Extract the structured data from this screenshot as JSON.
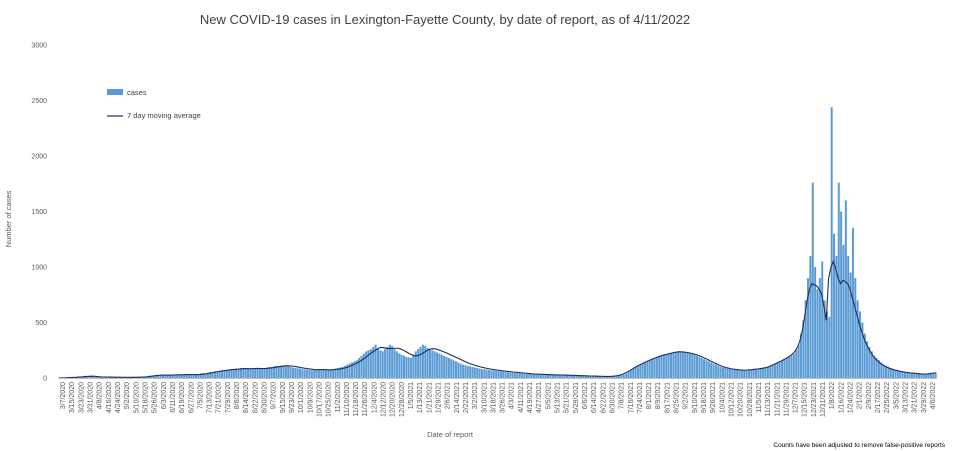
{
  "chart_data": {
    "type": "bar",
    "title": "New COVID-19 cases in Lexington-Fayette County, by date of report, as of 4/11/2022",
    "xlabel": "Date of report",
    "ylabel": "Number of cases",
    "ylim": [
      0,
      3000
    ],
    "yticks": [
      0,
      500,
      1000,
      1500,
      2000,
      2500,
      3000
    ],
    "grid": false,
    "legend_position": "top-left",
    "note": "Counts have been adjusted to remove false-positive reports",
    "x_tick_labels": [
      "3/7/2020",
      "3/15/2020",
      "3/23/2020",
      "3/31/2020",
      "4/8/2020",
      "4/16/2020",
      "4/24/2020",
      "5/2/2020",
      "5/10/2020",
      "5/18/2020",
      "5/26/2020",
      "6/3/2020",
      "6/11/2020",
      "6/19/2020",
      "6/27/2020",
      "7/5/2020",
      "7/13/2020",
      "7/21/2020",
      "7/29/2020",
      "8/6/2020",
      "8/14/2020",
      "8/22/2020",
      "8/30/2020",
      "9/7/2020",
      "9/15/2020",
      "9/23/2020",
      "10/1/2020",
      "10/9/2020",
      "10/17/2020",
      "10/25/2020",
      "11/2/2020",
      "11/10/2020",
      "11/18/2020",
      "11/26/2020",
      "12/4/2020",
      "12/12/2020",
      "12/20/2020",
      "12/28/2020",
      "1/5/2021",
      "1/13/2021",
      "1/21/2021",
      "1/29/2021",
      "2/6/2021",
      "2/14/2021",
      "2/22/2021",
      "3/2/2021",
      "3/10/2021",
      "3/18/2021",
      "3/26/2021",
      "4/3/2021",
      "4/11/2021",
      "4/19/2021",
      "4/27/2021",
      "5/5/2021",
      "5/13/2021",
      "5/21/2021",
      "5/29/2021",
      "6/6/2021",
      "6/14/2021",
      "6/22/2021",
      "6/30/2021",
      "7/8/2021",
      "7/16/2021",
      "7/24/2021",
      "8/1/2021",
      "8/9/2021",
      "8/17/2021",
      "8/25/2021",
      "9/2/2021",
      "9/10/2021",
      "9/18/2021",
      "9/26/2021",
      "10/4/2021",
      "10/12/2021",
      "10/20/2021",
      "10/28/2021",
      "11/5/2021",
      "11/13/2021",
      "11/21/2021",
      "11/29/2021",
      "12/7/2021",
      "12/15/2021",
      "12/23/2021",
      "12/31/2021",
      "1/8/2022",
      "1/16/2022",
      "1/24/2022",
      "2/1/2022",
      "2/9/2022",
      "2/17/2022",
      "2/25/2022",
      "3/5/2022",
      "3/13/2022",
      "3/21/2022",
      "3/29/2022",
      "4/6/2022"
    ],
    "series": [
      {
        "name": "cases",
        "type": "bar",
        "color": "#5B9BD5",
        "values": [
          2,
          1,
          0,
          3,
          5,
          4,
          8,
          6,
          12,
          10,
          15,
          20,
          18,
          14,
          22,
          12,
          10,
          8,
          6,
          10,
          12,
          8,
          10,
          5,
          6,
          8,
          6,
          5,
          4,
          7,
          8,
          5,
          6,
          9,
          8,
          10,
          12,
          15,
          20,
          22,
          25,
          28,
          26,
          30,
          24,
          22,
          26,
          28,
          30,
          32,
          28,
          26,
          30,
          35,
          32,
          30,
          28,
          26,
          30,
          35,
          40,
          45,
          42,
          48,
          55,
          50,
          60,
          58,
          65,
          70,
          68,
          75,
          72,
          80,
          78,
          85,
          82,
          90,
          88,
          80,
          85,
          82,
          88,
          90,
          86,
          80,
          85,
          90,
          95,
          100,
          98,
          105,
          110,
          108,
          112,
          115,
          110,
          105,
          100,
          95,
          90,
          88,
          85,
          80,
          78,
          75,
          72,
          70,
          75,
          80,
          78,
          76,
          72,
          70,
          75,
          78,
          80,
          85,
          90,
          95,
          100,
          110,
          120,
          130,
          140,
          150,
          160,
          180,
          200,
          220,
          240,
          250,
          260,
          280,
          300,
          270,
          250,
          240,
          260,
          280,
          300,
          290,
          260,
          240,
          220,
          210,
          200,
          190,
          185,
          180,
          210,
          240,
          260,
          280,
          300,
          290,
          270,
          260,
          250,
          240,
          230,
          220,
          210,
          200,
          190,
          180,
          170,
          160,
          150,
          140,
          130,
          120,
          115,
          110,
          105,
          100,
          95,
          90,
          85,
          80,
          78,
          75,
          72,
          70,
          68,
          65,
          62,
          60,
          58,
          55,
          52,
          50,
          48,
          45,
          44,
          42,
          40,
          38,
          36,
          35,
          34,
          33,
          32,
          31,
          30,
          30,
          29,
          28,
          28,
          27,
          27,
          26,
          25,
          25,
          24,
          23,
          22,
          22,
          21,
          20,
          20,
          19,
          18,
          18,
          17,
          16,
          15,
          14,
          14,
          13,
          12,
          12,
          11,
          10,
          12,
          14,
          16,
          20,
          25,
          30,
          40,
          55,
          70,
          85,
          100,
          110,
          120,
          130,
          140,
          150,
          160,
          170,
          180,
          190,
          200,
          205,
          210,
          215,
          220,
          225,
          230,
          235,
          240,
          238,
          235,
          230,
          225,
          220,
          215,
          210,
          200,
          190,
          180,
          170,
          160,
          150,
          140,
          130,
          120,
          110,
          100,
          95,
          90,
          85,
          80,
          78,
          76,
          74,
          72,
          70,
          70,
          72,
          75,
          78,
          80,
          82,
          85,
          88,
          90,
          95,
          100,
          110,
          120,
          130,
          140,
          150,
          160,
          170,
          180,
          190,
          200,
          220,
          250,
          300,
          400,
          520,
          700,
          900,
          1100,
          1760,
          1000,
          800,
          900,
          1050,
          700,
          600,
          550,
          2440,
          1300,
          1100,
          1760,
          1500,
          1200,
          1600,
          1100,
          950,
          1350,
          900,
          700,
          600,
          500,
          400,
          330,
          280,
          240,
          200,
          180,
          160,
          140,
          120,
          110,
          100,
          90,
          80,
          75,
          70,
          65,
          60,
          55,
          50,
          48,
          46,
          44,
          42,
          40,
          38,
          36,
          35,
          34,
          40,
          45,
          50
        ]
      },
      {
        "name": "7 day moving average",
        "type": "line",
        "color": "#1F2D5C",
        "values": [
          1,
          1,
          1,
          2,
          3,
          4,
          5,
          6,
          8,
          9,
          11,
          13,
          14,
          15,
          16,
          15,
          13,
          11,
          9,
          9,
          9,
          8,
          8,
          7,
          7,
          7,
          6,
          6,
          6,
          6,
          6,
          6,
          6,
          7,
          7,
          8,
          9,
          11,
          13,
          16,
          19,
          22,
          24,
          26,
          26,
          25,
          25,
          26,
          27,
          28,
          29,
          29,
          29,
          30,
          31,
          31,
          30,
          30,
          30,
          31,
          33,
          36,
          39,
          43,
          47,
          51,
          55,
          58,
          62,
          65,
          68,
          71,
          74,
          76,
          78,
          80,
          82,
          84,
          85,
          84,
          84,
          84,
          85,
          86,
          86,
          85,
          85,
          86,
          88,
          91,
          94,
          97,
          101,
          104,
          107,
          110,
          110,
          109,
          107,
          104,
          100,
          96,
          92,
          88,
          85,
          82,
          79,
          76,
          75,
          75,
          76,
          76,
          75,
          74,
          74,
          75,
          77,
          79,
          82,
          86,
          91,
          98,
          106,
          115,
          125,
          135,
          146,
          160,
          175,
          192,
          210,
          226,
          240,
          254,
          268,
          275,
          274,
          270,
          266,
          265,
          266,
          268,
          268,
          264,
          256,
          244,
          232,
          220,
          210,
          200,
          200,
          205,
          215,
          228,
          242,
          254,
          262,
          264,
          262,
          256,
          248,
          240,
          231,
          222,
          212,
          202,
          192,
          182,
          172,
          162,
          152,
          142,
          133,
          125,
          118,
          111,
          105,
          99,
          94,
          89,
          85,
          81,
          77,
          74,
          71,
          68,
          65,
          63,
          60,
          58,
          55,
          53,
          51,
          49,
          47,
          45,
          43,
          41,
          39,
          37,
          36,
          35,
          34,
          33,
          32,
          31,
          30,
          29,
          29,
          28,
          28,
          27,
          26,
          26,
          25,
          24,
          23,
          23,
          22,
          21,
          21,
          20,
          19,
          18,
          18,
          17,
          16,
          15,
          15,
          14,
          14,
          14,
          15,
          17,
          20,
          24,
          30,
          38,
          48,
          60,
          73,
          86,
          99,
          111,
          122,
          132,
          142,
          152,
          161,
          170,
          179,
          187,
          195,
          202,
          208,
          214,
          219,
          224,
          229,
          233,
          236,
          236,
          235,
          232,
          228,
          224,
          219,
          213,
          206,
          198,
          189,
          179,
          169,
          158,
          147,
          137,
          127,
          117,
          108,
          100,
          94,
          89,
          84,
          80,
          77,
          75,
          73,
          72,
          71,
          72,
          74,
          76,
          79,
          81,
          84,
          87,
          91,
          96,
          103,
          112,
          122,
          132,
          142,
          152,
          163,
          175,
          188,
          202,
          220,
          245,
          280,
          340,
          430,
          560,
          700,
          800,
          850,
          840,
          830,
          800,
          760,
          650,
          520,
          900,
          1000,
          1050,
          980,
          900,
          850,
          880,
          870,
          850,
          800,
          720,
          640,
          560,
          480,
          410,
          350,
          300,
          255,
          220,
          190,
          165,
          145,
          128,
          114,
          102,
          92,
          84,
          77,
          71,
          66,
          61,
          57,
          53,
          50,
          47,
          45,
          43,
          41,
          39,
          37,
          36,
          36,
          38,
          41,
          44,
          47
        ]
      }
    ]
  }
}
